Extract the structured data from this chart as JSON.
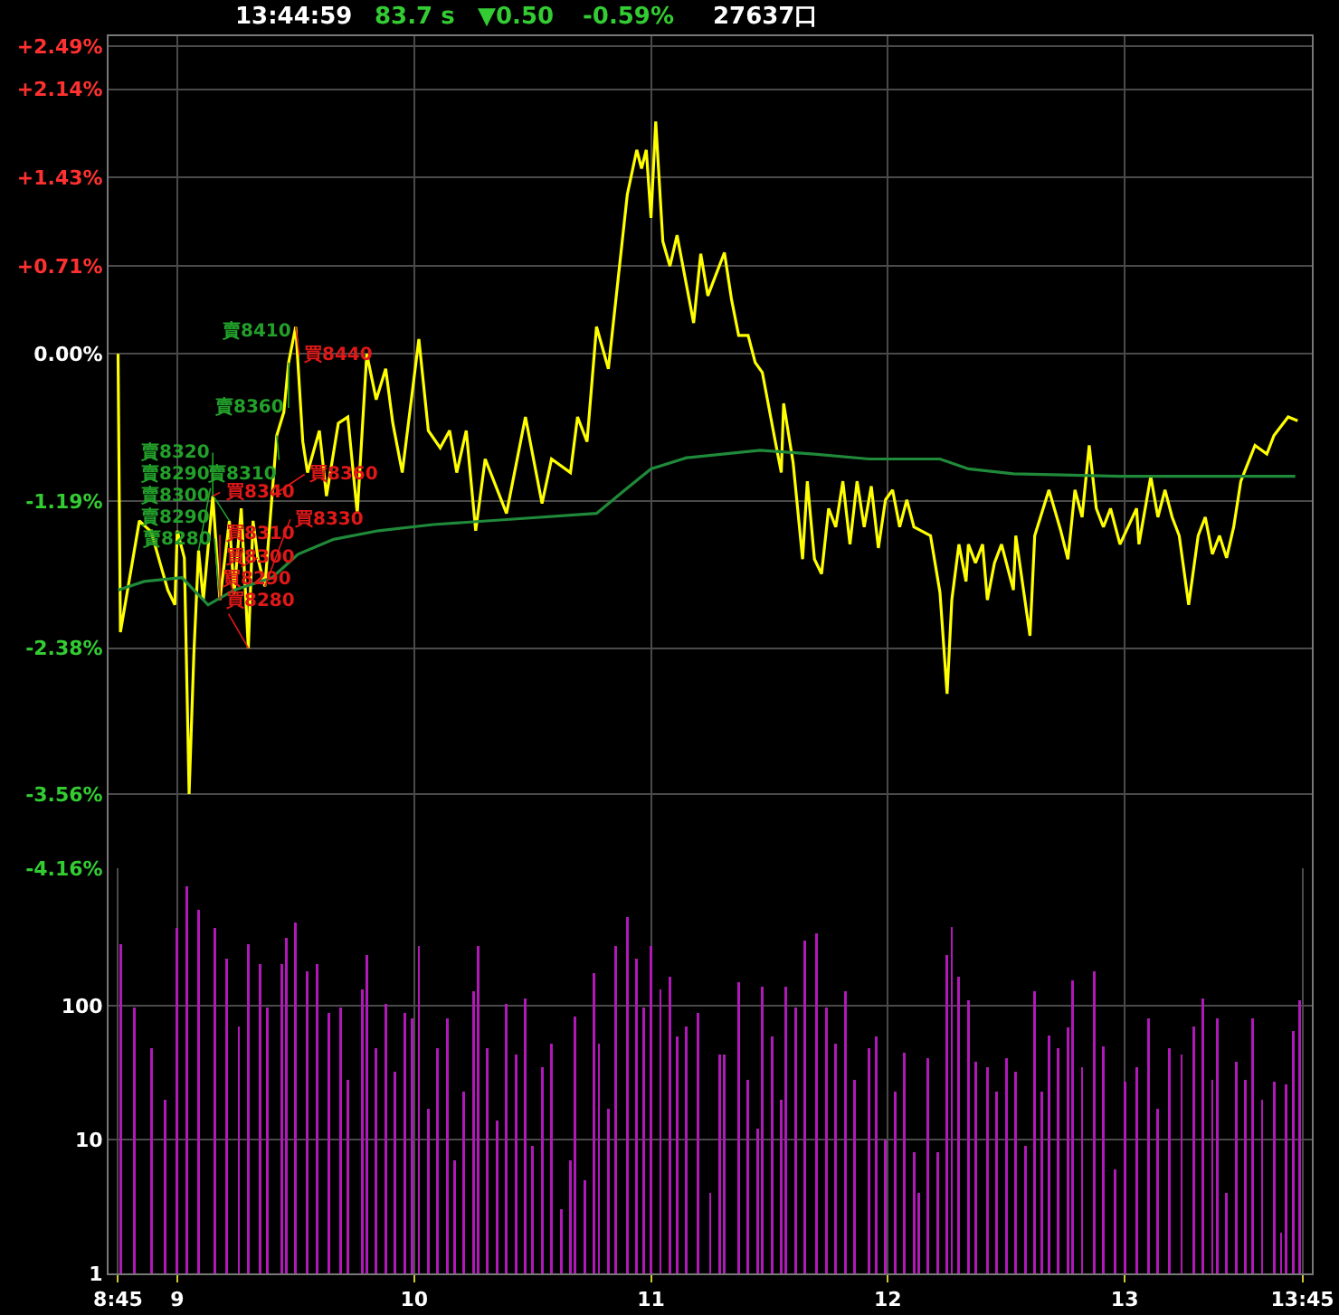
{
  "chart_data": [
    {
      "type": "line",
      "annotations": [
        "13:44:59",
        "83.7 s",
        "▼0.50",
        "-0.59%",
        "27637口",
        {
          "text": "賣8410",
          "x": 9.5,
          "y": 0.22
        },
        {
          "text": "賣8360",
          "x": 9.47,
          "y": -0.07
        },
        {
          "text": "賣8320",
          "x": 9.15,
          "y": -1.15
        },
        {
          "text": "賣8290",
          "x": 9.09,
          "y": -1.59
        },
        {
          "text": "賣8300",
          "x": 9.22,
          "y": -1.35
        },
        {
          "text": "賣8310",
          "x": 9.42,
          "y": -0.66
        },
        {
          "text": "賣8290",
          "x": 9.0,
          "y": -1.43
        },
        {
          "text": "賣8280",
          "x": 9.18,
          "y": -1.99
        },
        {
          "text": "買8440",
          "x": 9.5,
          "y": 0.22
        },
        {
          "text": "買8360",
          "x": 9.4,
          "y": -1.15
        },
        {
          "text": "買8340",
          "x": 9.15,
          "y": -1.15
        },
        {
          "text": "買8330",
          "x": 9.37,
          "y": -1.88
        },
        {
          "text": "買8310",
          "x": 9.18,
          "y": -1.99
        },
        {
          "text": "買8300",
          "x": 9.24,
          "y": -1.94
        },
        {
          "text": "買8290",
          "x": 9.34,
          "y": -1.65
        },
        {
          "text": "買8280",
          "x": 9.3,
          "y": -2.38
        }
      ],
      "series": [
        {
          "color": "#ffff00",
          "x": [
            8.75,
            8.76,
            8.84,
            8.89,
            8.96,
            8.99,
            9.0,
            9.03,
            9.05,
            9.07,
            9.09,
            9.11,
            9.15,
            9.18,
            9.22,
            9.24,
            9.27,
            9.3,
            9.32,
            9.34,
            9.37,
            9.4,
            9.42,
            9.45,
            9.47,
            9.5,
            9.53,
            9.55,
            9.6,
            9.63,
            9.68,
            9.72,
            9.76,
            9.8,
            9.84,
            9.88,
            9.91,
            9.95,
            10.02,
            10.06,
            10.11,
            10.15,
            10.18,
            10.22,
            10.26,
            10.3,
            10.39,
            10.47,
            10.54,
            10.58,
            10.66,
            10.69,
            10.73,
            10.77,
            10.82,
            10.9,
            10.94,
            10.96,
            10.98,
            11.0,
            11.02,
            11.05,
            11.08,
            11.11,
            11.18,
            11.21,
            11.24,
            11.31,
            11.34,
            11.37,
            11.41,
            11.44,
            11.47,
            11.52,
            11.55,
            11.56,
            11.6,
            11.64,
            11.66,
            11.69,
            11.72,
            11.75,
            11.78,
            11.81,
            11.84,
            11.87,
            11.9,
            11.93,
            11.96,
            11.99,
            12.02,
            12.05,
            12.08,
            12.11,
            12.18,
            12.22,
            12.25,
            12.27,
            12.3,
            12.33,
            12.34,
            12.37,
            12.4,
            12.42,
            12.45,
            12.48,
            12.53,
            12.54,
            12.6,
            12.62,
            12.68,
            12.73,
            12.76,
            12.79,
            12.82,
            12.85,
            12.88,
            12.91,
            12.94,
            12.98,
            13.05,
            13.06,
            13.11,
            13.14,
            13.17,
            13.2,
            13.23,
            13.27,
            13.31,
            13.34,
            13.37,
            13.4,
            13.43,
            13.46,
            13.49,
            13.55,
            13.6,
            13.63,
            13.69,
            13.73
          ],
          "values": [
            0,
            -2.25,
            -1.35,
            -1.44,
            -1.91,
            -2.03,
            -1.43,
            -1.65,
            -3.56,
            -2.43,
            -1.59,
            -1.99,
            -1.15,
            -1.99,
            -1.35,
            -1.94,
            -1.25,
            -2.38,
            -1.35,
            -1.65,
            -1.88,
            -1.15,
            -0.66,
            -0.47,
            -0.07,
            0.22,
            -0.71,
            -0.96,
            -0.62,
            -1.15,
            -0.56,
            -0.51,
            -1.29,
            0,
            -0.37,
            -0.12,
            -0.56,
            -0.96,
            0.12,
            -0.62,
            -0.76,
            -0.62,
            -0.96,
            -0.62,
            -1.43,
            -0.85,
            -1.29,
            -0.51,
            -1.21,
            -0.85,
            -0.96,
            -0.51,
            -0.71,
            0.22,
            -0.12,
            1.29,
            1.65,
            1.5,
            1.65,
            1.1,
            1.88,
            0.91,
            0.71,
            0.96,
            0.25,
            0.81,
            0.47,
            0.82,
            0.44,
            0.15,
            0.15,
            -0.07,
            -0.15,
            -0.66,
            -0.96,
            -0.4,
            -0.88,
            -1.66,
            -1.03,
            -1.66,
            -1.78,
            -1.25,
            -1.4,
            -1.03,
            -1.54,
            -1.03,
            -1.4,
            -1.07,
            -1.57,
            -1.18,
            -1.1,
            -1.4,
            -1.18,
            -1.4,
            -1.47,
            -1.93,
            -2.75,
            -1.99,
            -1.54,
            -1.84,
            -1.54,
            -1.69,
            -1.54,
            -1.99,
            -1.69,
            -1.54,
            -1.91,
            -1.47,
            -2.28,
            -1.47,
            -1.1,
            -1.43,
            -1.66,
            -1.1,
            -1.32,
            -0.74,
            -1.25,
            -1.4,
            -1.25,
            -1.54,
            -1.25,
            -1.54,
            -0.99,
            -1.32,
            -1.1,
            -1.32,
            -1.47,
            -2.03,
            -1.47,
            -1.32,
            -1.62,
            -1.47,
            -1.65,
            -1.4,
            -1.03,
            -0.74,
            -0.81,
            -0.66,
            -0.51,
            -0.54
          ]
        },
        {
          "color": "#1f8a3a",
          "x": [
            8.75,
            8.86,
            9.02,
            9.13,
            9.24,
            9.4,
            9.51,
            9.66,
            9.85,
            10.08,
            10.39,
            10.77,
            10.89,
            11.0,
            11.15,
            11.46,
            11.69,
            11.92,
            12.22,
            12.34,
            12.53,
            12.98,
            13.44,
            13.72
          ],
          "values": [
            -1.91,
            -1.84,
            -1.81,
            -2.03,
            -1.91,
            -1.81,
            -1.62,
            -1.5,
            -1.43,
            -1.38,
            -1.34,
            -1.29,
            -1.1,
            -0.93,
            -0.84,
            -0.78,
            -0.81,
            -0.85,
            -0.85,
            -0.93,
            -0.97,
            -0.99,
            -0.99,
            -0.99
          ]
        }
      ],
      "xlim": [
        8.71,
        13.79
      ],
      "xticks": [
        9,
        10,
        11,
        12,
        13
      ],
      "ylim": [
        -4.16,
        2.57
      ],
      "yticks": [
        {
          "value": 2.49,
          "label": "+2.49%"
        },
        {
          "value": 2.14,
          "label": "+2.14%"
        },
        {
          "value": 1.43,
          "label": "+1.43%"
        },
        {
          "value": 0.71,
          "label": "+0.71%"
        },
        {
          "value": 0,
          "label": "0.00%"
        },
        {
          "value": -1.19,
          "label": "-1.19%"
        },
        {
          "value": -2.38,
          "label": "-2.38%"
        },
        {
          "value": -3.56,
          "label": "-3.56%"
        },
        {
          "value": -4.16,
          "label": "-4.16%"
        }
      ],
      "grid": true,
      "tick_labels": "y"
    },
    {
      "type": "bar",
      "color": "#b018b8",
      "log": true,
      "x": [
        8.76,
        8.82,
        8.89,
        8.95,
        9.0,
        9.04,
        9.09,
        9.16,
        9.21,
        9.26,
        9.3,
        9.35,
        9.38,
        9.44,
        9.46,
        9.5,
        9.55,
        9.59,
        9.64,
        9.69,
        9.72,
        9.78,
        9.8,
        9.84,
        9.88,
        9.92,
        9.96,
        9.99,
        10.02,
        10.06,
        10.1,
        10.14,
        10.17,
        10.21,
        10.25,
        10.27,
        10.31,
        10.35,
        10.39,
        10.43,
        10.47,
        10.5,
        10.54,
        10.58,
        10.62,
        10.66,
        10.68,
        10.72,
        10.76,
        10.78,
        10.82,
        10.85,
        10.9,
        10.94,
        10.97,
        11.0,
        11.04,
        11.08,
        11.11,
        11.15,
        11.2,
        11.25,
        11.29,
        11.31,
        11.37,
        11.41,
        11.45,
        11.47,
        11.51,
        11.55,
        11.57,
        11.61,
        11.65,
        11.7,
        11.74,
        11.78,
        11.82,
        11.86,
        11.92,
        11.95,
        11.99,
        12.03,
        12.07,
        12.11,
        12.13,
        12.17,
        12.21,
        12.25,
        12.27,
        12.3,
        12.34,
        12.37,
        12.42,
        12.46,
        12.5,
        12.54,
        12.58,
        12.62,
        12.65,
        12.68,
        12.72,
        12.76,
        12.78,
        12.82,
        12.87,
        12.91,
        12.96,
        13.0,
        13.05,
        13.1,
        13.14,
        13.19,
        13.24,
        13.29,
        13.33,
        13.37,
        13.39,
        13.43,
        13.47,
        13.51,
        13.54,
        13.58,
        13.63,
        13.66,
        13.68,
        13.71,
        13.74
      ],
      "values": [
        290,
        97,
        48,
        20,
        380,
        780,
        520,
        380,
        225,
        70,
        290,
        205,
        97,
        205,
        325,
        420,
        180,
        205,
        89,
        97,
        28,
        132,
        240,
        48,
        103,
        32,
        89,
        81,
        280,
        17,
        48,
        81,
        7,
        23,
        128,
        280,
        48,
        14,
        103,
        43,
        113,
        9,
        35,
        52,
        3,
        7,
        83,
        5,
        175,
        52,
        17,
        280,
        460,
        225,
        97,
        280,
        132,
        165,
        59,
        70,
        89,
        4,
        43,
        43,
        150,
        28,
        12,
        140,
        59,
        20,
        140,
        97,
        310,
        350,
        97,
        52,
        128,
        28,
        48,
        59,
        10,
        23,
        45,
        8,
        4,
        41,
        8,
        240,
        390,
        165,
        110,
        38,
        35,
        23,
        41,
        32,
        9,
        128,
        23,
        60,
        48,
        69,
        155,
        35,
        180,
        50,
        6,
        27,
        35,
        81,
        17,
        48,
        43,
        70,
        113,
        28,
        81,
        4,
        38,
        28,
        81,
        20,
        27,
        2,
        26,
        65,
        110
      ],
      "xlim": [
        8.71,
        13.79
      ],
      "xticks": [
        {
          "value": 8.75,
          "label": "8:45"
        },
        9,
        10,
        11,
        12,
        13,
        {
          "value": 13.75,
          "label": "13:45"
        }
      ],
      "ylim": [
        1,
        1070
      ],
      "yticks": [
        1,
        10,
        100
      ],
      "grid": true
    }
  ]
}
